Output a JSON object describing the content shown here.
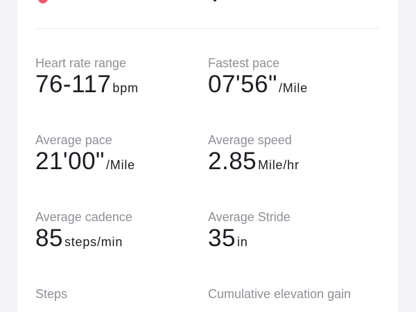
{
  "stats": [
    {
      "label": "Heart rate range",
      "value": "76-117",
      "unit": "bpm"
    },
    {
      "label": "Fastest pace",
      "value": "07'56\"",
      "unit": "/Mile"
    },
    {
      "label": "Average pace",
      "value": "21'00\"",
      "unit": "/Mile"
    },
    {
      "label": "Average speed",
      "value": "2.85",
      "unit": "Mile/hr"
    },
    {
      "label": "Average cadence",
      "value": "85",
      "unit": "steps/min"
    },
    {
      "label": "Average Stride",
      "value": "35",
      "unit": "in"
    },
    {
      "label": "Steps",
      "value": "",
      "unit": ""
    },
    {
      "label": "Cumulative elevation gain",
      "value": "",
      "unit": ""
    }
  ],
  "colors": {
    "background": "#f3f3f5",
    "card": "#ffffff",
    "label": "#8e8f96",
    "value": "#1c1c22",
    "accent": "#f05a6e"
  }
}
